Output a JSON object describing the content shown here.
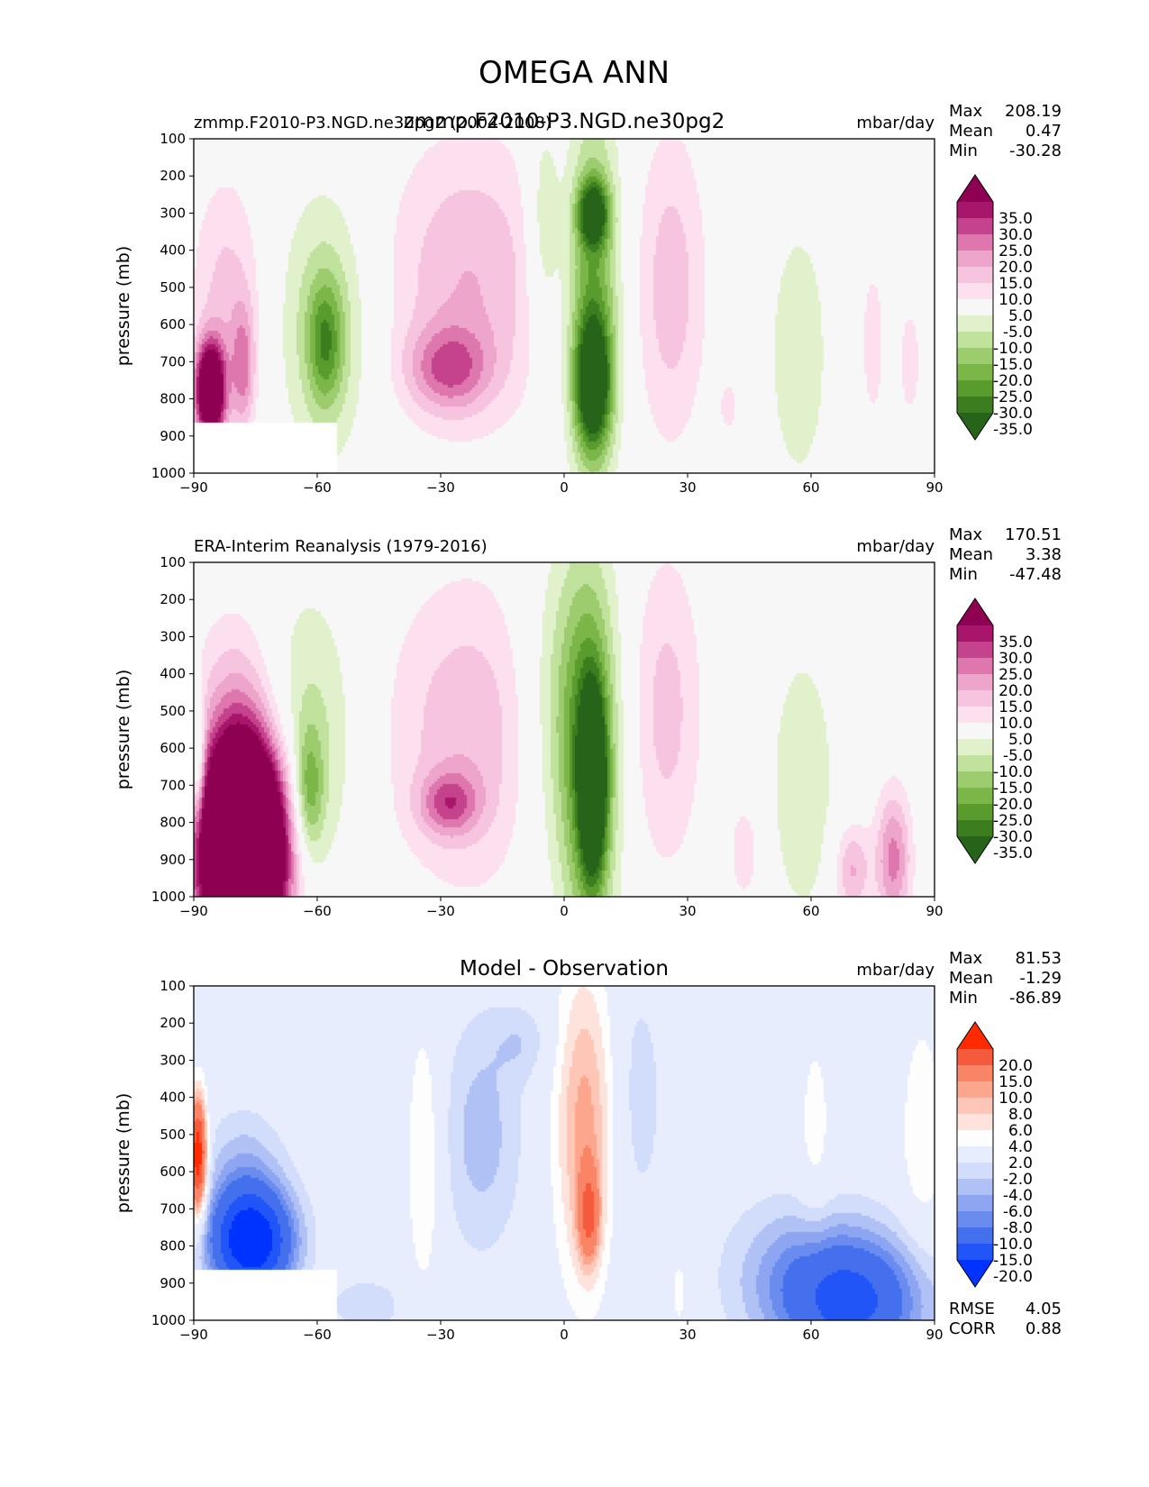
{
  "figure_title": "OMEGA ANN",
  "colors": {
    "omega_levels": [
      -35,
      -30,
      -25,
      -20,
      -15,
      -10,
      -5,
      5,
      10,
      15,
      20,
      25,
      30,
      35
    ],
    "omega_colors": [
      "#276419",
      "#3c7e1f",
      "#5a9b2e",
      "#7ab648",
      "#9ccc6e",
      "#c1e29d",
      "#e0f1cc",
      "#f7f7f7",
      "#fde0ef",
      "#f7c4e0",
      "#eda5cc",
      "#de77ae",
      "#c5428c",
      "#a8166c",
      "#8e0152"
    ],
    "diff_levels": [
      -20,
      -15,
      -10,
      -8,
      -6,
      -4,
      -2,
      2,
      4,
      6,
      8,
      10,
      15,
      20
    ],
    "diff_colors": [
      "#0033ff",
      "#2255f7",
      "#4470ee",
      "#6a8cef",
      "#8ea6f2",
      "#b0c1f6",
      "#d2dcfb",
      "#e8edfd",
      "#fdfdfd",
      "#fde3dc",
      "#fdc6b6",
      "#fca68d",
      "#f98466",
      "#f55a3c",
      "#ff2a00"
    ]
  },
  "chart_data": [
    {
      "type": "heatmap",
      "panel_id": "test",
      "title_left": "zmmp.F2010-P3.NGD.ne30pg2 (2004-2008)",
      "title_center": "zmmp.F2010-P3.NGD.ne30pg2",
      "title_right": "mbar/day",
      "ylabel": "pressure (mb)",
      "xlim": [
        -90,
        90
      ],
      "ylim": [
        1000,
        100
      ],
      "xticks": [
        -90,
        -60,
        -30,
        0,
        30,
        60,
        90
      ],
      "xtick_labels": [
        "−90",
        "−60",
        "−30",
        "0",
        "30",
        "60",
        "90"
      ],
      "yticks": [
        100,
        200,
        300,
        400,
        500,
        600,
        700,
        800,
        900,
        1000
      ],
      "stats_labels": [
        "Max",
        "Mean",
        "Min"
      ],
      "stats_values": [
        "208.19",
        "0.47",
        "-30.28"
      ],
      "colorbar_labels": [
        "35.0",
        "30.0",
        "25.0",
        "20.0",
        "15.0",
        "10.0",
        "5.0",
        "-5.0",
        "-10.0",
        "-15.0",
        "-20.0",
        "-25.0",
        "-30.0",
        "-35.0"
      ],
      "features": [
        {
          "lat": -23,
          "p": 480,
          "slat": 14,
          "sp": 270,
          "v": 15
        },
        {
          "lat": -28,
          "p": 720,
          "slat": 7,
          "sp": 80,
          "v": 20
        },
        {
          "lat": -58,
          "p": 600,
          "slat": 8,
          "sp": 260,
          "v": -13
        },
        {
          "lat": -58,
          "p": 650,
          "slat": 3,
          "sp": 120,
          "v": -20
        },
        {
          "lat": -82,
          "p": 530,
          "slat": 6,
          "sp": 230,
          "v": 12
        },
        {
          "lat": -86,
          "p": 780,
          "slat": 2.5,
          "sp": 90,
          "v": 60
        },
        {
          "lat": -78,
          "p": 720,
          "slat": 2,
          "sp": 120,
          "v": 18
        },
        {
          "lat": 7,
          "p": 520,
          "slat": 4.5,
          "sp": 350,
          "v": -25
        },
        {
          "lat": 7,
          "p": 760,
          "slat": 3,
          "sp": 120,
          "v": -40
        },
        {
          "lat": 7,
          "p": 300,
          "slat": 2.5,
          "sp": 60,
          "v": -35
        },
        {
          "lat": -5,
          "p": 350,
          "slat": 3,
          "sp": 220,
          "v": -12
        },
        {
          "lat": 26,
          "p": 500,
          "slat": 6,
          "sp": 300,
          "v": 13
        },
        {
          "lat": 57,
          "p": 680,
          "slat": 6,
          "sp": 300,
          "v": -8
        },
        {
          "lat": 75,
          "p": 650,
          "slat": 2,
          "sp": 150,
          "v": 9
        },
        {
          "lat": 84,
          "p": 700,
          "slat": 2,
          "sp": 120,
          "v": 8
        },
        {
          "lat": 40,
          "p": 820,
          "slat": 1.5,
          "sp": 50,
          "v": 8
        }
      ],
      "mask": {
        "lat_max": -55,
        "p_min": 865
      }
    },
    {
      "type": "heatmap",
      "panel_id": "ref",
      "title_left": "ERA-Interim Reanalysis (1979-2016)",
      "title_center": "",
      "title_right": "mbar/day",
      "ylabel": "pressure (mb)",
      "xlim": [
        -90,
        90
      ],
      "ylim": [
        1000,
        100
      ],
      "xticks": [
        -90,
        -60,
        -30,
        0,
        30,
        60,
        90
      ],
      "xtick_labels": [
        "−90",
        "−60",
        "−30",
        "0",
        "30",
        "60",
        "90"
      ],
      "yticks": [
        100,
        200,
        300,
        400,
        500,
        600,
        700,
        800,
        900,
        1000
      ],
      "stats_labels": [
        "Max",
        "Mean",
        "Min"
      ],
      "stats_values": [
        "170.51",
        "3.38",
        "-47.48"
      ],
      "colorbar_labels": [
        "35.0",
        "30.0",
        "25.0",
        "20.0",
        "15.0",
        "10.0",
        "5.0",
        "-5.0",
        "-10.0",
        "-15.0",
        "-20.0",
        "-25.0",
        "-30.0",
        "-35.0"
      ],
      "features": [
        {
          "lat": -23,
          "p": 560,
          "slat": 14,
          "sp": 290,
          "v": 14
        },
        {
          "lat": -28,
          "p": 750,
          "slat": 5,
          "sp": 60,
          "v": 20
        },
        {
          "lat": -62,
          "p": 580,
          "slat": 8,
          "sp": 280,
          "v": -12
        },
        {
          "lat": -62,
          "p": 720,
          "slat": 2.5,
          "sp": 120,
          "v": -18
        },
        {
          "lat": -78,
          "p": 870,
          "slat": 7,
          "sp": 190,
          "v": 120
        },
        {
          "lat": -80,
          "p": 500,
          "slat": 7,
          "sp": 200,
          "v": 12
        },
        {
          "lat": -89,
          "p": 640,
          "slat": 1.2,
          "sp": 120,
          "v": -22
        },
        {
          "lat": 6,
          "p": 620,
          "slat": 5,
          "sp": 360,
          "v": -28
        },
        {
          "lat": 7,
          "p": 700,
          "slat": 2.2,
          "sp": 170,
          "v": -45
        },
        {
          "lat": -2,
          "p": 500,
          "slat": 7,
          "sp": 300,
          "v": -11
        },
        {
          "lat": 25,
          "p": 500,
          "slat": 6,
          "sp": 300,
          "v": 12
        },
        {
          "lat": 58,
          "p": 700,
          "slat": 6,
          "sp": 280,
          "v": -9
        },
        {
          "lat": 80,
          "p": 900,
          "slat": 3,
          "sp": 130,
          "v": 22
        },
        {
          "lat": 70,
          "p": 930,
          "slat": 3,
          "sp": 90,
          "v": 16
        },
        {
          "lat": 44,
          "p": 880,
          "slat": 3,
          "sp": 110,
          "v": 8
        }
      ],
      "mask": null
    },
    {
      "type": "heatmap",
      "panel_id": "diff",
      "title_left": "",
      "title_center": "Model - Observation",
      "title_right": "mbar/day",
      "ylabel": "pressure (mb)",
      "xlim": [
        -90,
        90
      ],
      "ylim": [
        1000,
        100
      ],
      "xticks": [
        -90,
        -60,
        -30,
        0,
        30,
        60,
        90
      ],
      "xtick_labels": [
        "−90",
        "−60",
        "−30",
        "0",
        "30",
        "60",
        "90"
      ],
      "yticks": [
        100,
        200,
        300,
        400,
        500,
        600,
        700,
        800,
        900,
        1000
      ],
      "stats_labels": [
        "Max",
        "Mean",
        "Min"
      ],
      "stats_values": [
        "81.53",
        "-1.29",
        "-86.89"
      ],
      "colorbar_labels": [
        "20.0",
        "15.0",
        "10.0",
        "8.0",
        "6.0",
        "4.0",
        "2.0",
        "-2.0",
        "-4.0",
        "-6.0",
        "-8.0",
        "-10.0",
        "-15.0",
        "-20.0"
      ],
      "metrics_labels": [
        "RMSE",
        "CORR"
      ],
      "metrics_values": [
        "4.05",
        "0.88"
      ],
      "features": [
        {
          "lat": 5,
          "p": 480,
          "slat": 5,
          "sp": 300,
          "v": 9
        },
        {
          "lat": 6,
          "p": 720,
          "slat": 1.8,
          "sp": 90,
          "v": 12
        },
        {
          "lat": -20,
          "p": 500,
          "slat": 7,
          "sp": 230,
          "v": -5
        },
        {
          "lat": -34,
          "p": 560,
          "slat": 3,
          "sp": 260,
          "v": 4.5
        },
        {
          "lat": -10,
          "p": 250,
          "slat": 5,
          "sp": 70,
          "v": -3
        },
        {
          "lat": 18,
          "p": 400,
          "slat": 5,
          "sp": 260,
          "v": -3
        },
        {
          "lat": -76,
          "p": 790,
          "slat": 7,
          "sp": 100,
          "v": -25
        },
        {
          "lat": -78,
          "p": 600,
          "slat": 7,
          "sp": 120,
          "v": -5
        },
        {
          "lat": -89,
          "p": 560,
          "slat": 1.5,
          "sp": 110,
          "v": 25
        },
        {
          "lat": 70,
          "p": 950,
          "slat": 13,
          "sp": 130,
          "v": -16
        },
        {
          "lat": 55,
          "p": 850,
          "slat": 12,
          "sp": 140,
          "v": -4
        },
        {
          "lat": -48,
          "p": 960,
          "slat": 6,
          "sp": 50,
          "v": -4
        },
        {
          "lat": 87,
          "p": 520,
          "slat": 4,
          "sp": 260,
          "v": 3.5
        },
        {
          "lat": 61,
          "p": 500,
          "slat": 3,
          "sp": 220,
          "v": 3
        },
        {
          "lat": 28,
          "p": 920,
          "slat": 2,
          "sp": 90,
          "v": 3
        }
      ],
      "mask": {
        "lat_max": -55,
        "p_min": 865
      }
    }
  ]
}
